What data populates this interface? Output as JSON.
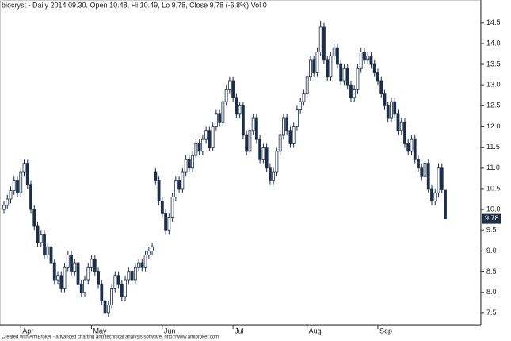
{
  "chart_data": {
    "type": "candlestick",
    "title": "biocryst - Daily 2014.09.30. Open 10.48, Hi 10.49, Lo 9.78, Close 9.78 (-6.8%) Vol 0",
    "footer": "Created with AmiBroker - advanced charting and technical analysis software. http://www.amibroker.com",
    "categories": [
      null,
      null,
      null,
      null,
      null,
      "Apr",
      null,
      null,
      null,
      null,
      null,
      null,
      null,
      null,
      null,
      null,
      null,
      null,
      null,
      null,
      null,
      null,
      null,
      null,
      null,
      null,
      "May",
      null,
      null,
      null,
      null,
      null,
      null,
      null,
      null,
      null,
      null,
      null,
      null,
      null,
      null,
      null,
      null,
      null,
      null,
      null,
      null,
      "Jun",
      null,
      null,
      null,
      null,
      null,
      null,
      null,
      null,
      null,
      null,
      null,
      null,
      null,
      null,
      null,
      null,
      null,
      null,
      null,
      null,
      "Jul",
      null,
      null,
      null,
      null,
      null,
      null,
      null,
      null,
      null,
      null,
      null,
      null,
      null,
      null,
      null,
      null,
      null,
      null,
      null,
      null,
      null,
      "Aug",
      null,
      null,
      null,
      null,
      null,
      null,
      null,
      null,
      null,
      null,
      null,
      null,
      null,
      null,
      null,
      null,
      null,
      null,
      null,
      null,
      "Sep",
      null,
      null,
      null,
      null,
      null,
      null,
      null,
      null,
      null,
      null,
      null,
      null,
      null,
      null,
      null,
      null,
      null,
      null,
      null,
      null
    ],
    "open": [
      10.0,
      10.1,
      10.25,
      10.45,
      10.7,
      10.4,
      10.9,
      11.1,
      10.6,
      10.0,
      9.6,
      9.2,
      9.4,
      8.9,
      9.1,
      8.7,
      8.3,
      8.4,
      8.1,
      8.6,
      8.9,
      8.5,
      8.7,
      8.2,
      8.0,
      8.3,
      8.6,
      8.8,
      8.5,
      8.2,
      7.8,
      7.5,
      7.7,
      8.1,
      8.4,
      8.2,
      7.9,
      8.3,
      8.5,
      8.3,
      8.6,
      8.7,
      8.6,
      8.9,
      9.0,
      10.9,
      10.7,
      10.2,
      9.9,
      9.5,
      9.8,
      10.3,
      10.7,
      10.5,
      10.9,
      11.2,
      11.0,
      11.3,
      11.6,
      11.4,
      11.7,
      11.9,
      11.5,
      12.0,
      12.3,
      12.1,
      12.6,
      12.9,
      13.1,
      12.7,
      12.3,
      12.5,
      11.8,
      11.4,
      11.9,
      12.2,
      11.7,
      11.2,
      11.5,
      11.0,
      10.7,
      10.9,
      11.4,
      11.8,
      12.2,
      11.9,
      11.6,
      12.0,
      12.4,
      12.6,
      12.8,
      13.2,
      13.6,
      13.3,
      13.8,
      14.4,
      13.6,
      13.2,
      13.7,
      13.9,
      13.5,
      13.1,
      13.4,
      13.0,
      12.7,
      12.9,
      13.4,
      13.8,
      13.6,
      13.7,
      13.5,
      13.3,
      13.1,
      12.8,
      12.5,
      12.2,
      12.6,
      12.3,
      11.9,
      12.1,
      11.6,
      11.4,
      11.7,
      11.2,
      11.0,
      10.8,
      11.1,
      10.5,
      10.2,
      10.4,
      11.0,
      10.48
    ],
    "high": [
      10.2,
      10.35,
      10.55,
      10.8,
      10.8,
      11.0,
      11.2,
      11.2,
      10.7,
      10.1,
      9.7,
      9.5,
      9.5,
      9.2,
      9.2,
      8.8,
      8.5,
      8.5,
      8.7,
      9.0,
      9.0,
      8.8,
      8.8,
      8.3,
      8.4,
      8.7,
      8.9,
      8.9,
      8.6,
      8.3,
      7.9,
      7.8,
      8.2,
      8.5,
      8.5,
      8.3,
      8.4,
      8.6,
      8.6,
      8.7,
      8.8,
      8.8,
      9.0,
      9.1,
      9.2,
      11.0,
      10.8,
      10.3,
      10.0,
      9.9,
      10.4,
      10.8,
      10.8,
      11.0,
      11.3,
      11.3,
      11.4,
      11.7,
      11.7,
      11.8,
      12.0,
      12.0,
      12.1,
      12.4,
      12.4,
      12.7,
      13.0,
      13.2,
      13.2,
      12.8,
      12.6,
      12.6,
      11.9,
      12.0,
      12.3,
      12.3,
      11.8,
      11.6,
      11.6,
      11.1,
      11.0,
      11.5,
      11.9,
      12.3,
      12.3,
      12.0,
      12.1,
      12.5,
      12.7,
      12.9,
      13.3,
      13.7,
      13.7,
      13.9,
      14.55,
      14.5,
      13.7,
      13.8,
      14.0,
      14.0,
      13.6,
      13.5,
      13.5,
      13.1,
      13.0,
      13.5,
      13.9,
      13.9,
      13.8,
      13.8,
      13.6,
      13.4,
      13.2,
      12.9,
      12.6,
      12.7,
      12.7,
      12.4,
      12.2,
      12.2,
      11.7,
      11.8,
      11.8,
      11.3,
      11.1,
      11.2,
      11.2,
      10.6,
      10.5,
      11.1,
      11.1,
      10.49
    ],
    "low": [
      9.9,
      10.0,
      10.15,
      10.35,
      10.3,
      10.3,
      10.8,
      10.5,
      9.9,
      9.5,
      9.1,
      9.1,
      8.8,
      8.8,
      8.6,
      8.2,
      8.2,
      8.0,
      8.0,
      8.5,
      8.4,
      8.4,
      8.1,
      7.9,
      7.9,
      8.2,
      8.5,
      8.4,
      8.1,
      7.7,
      7.4,
      7.4,
      7.6,
      8.0,
      8.1,
      7.8,
      7.8,
      8.2,
      8.2,
      8.2,
      8.5,
      8.5,
      8.5,
      8.8,
      8.9,
      10.6,
      10.1,
      9.8,
      9.4,
      9.4,
      9.7,
      10.2,
      10.4,
      10.4,
      10.8,
      10.9,
      10.9,
      11.2,
      11.3,
      11.3,
      11.6,
      11.4,
      11.4,
      11.9,
      12.0,
      12.0,
      12.5,
      12.8,
      12.6,
      12.2,
      12.2,
      11.7,
      11.3,
      11.3,
      11.8,
      11.6,
      11.1,
      11.1,
      10.9,
      10.6,
      10.6,
      10.8,
      11.3,
      11.7,
      11.8,
      11.5,
      11.5,
      11.9,
      12.3,
      12.5,
      12.7,
      13.1,
      13.2,
      13.2,
      13.7,
      13.5,
      13.1,
      13.1,
      13.6,
      13.4,
      13.0,
      13.0,
      12.9,
      12.6,
      12.6,
      12.8,
      13.3,
      13.5,
      13.5,
      13.4,
      13.2,
      13.0,
      12.7,
      12.4,
      12.1,
      12.1,
      12.2,
      11.8,
      11.8,
      11.5,
      11.3,
      11.3,
      11.1,
      10.9,
      10.7,
      10.7,
      10.4,
      10.1,
      10.1,
      10.3,
      10.39,
      9.78
    ],
    "close": [
      10.1,
      10.25,
      10.45,
      10.7,
      10.4,
      10.9,
      11.1,
      10.6,
      10.0,
      9.6,
      9.2,
      9.4,
      8.9,
      9.1,
      8.7,
      8.3,
      8.4,
      8.1,
      8.6,
      8.9,
      8.5,
      8.7,
      8.2,
      8.0,
      8.3,
      8.6,
      8.8,
      8.5,
      8.2,
      7.8,
      7.5,
      7.7,
      8.1,
      8.4,
      8.2,
      7.9,
      8.3,
      8.5,
      8.3,
      8.6,
      8.7,
      8.6,
      8.9,
      9.0,
      9.1,
      10.7,
      10.2,
      9.9,
      9.5,
      9.8,
      10.3,
      10.7,
      10.5,
      10.9,
      11.2,
      11.0,
      11.3,
      11.6,
      11.4,
      11.7,
      11.9,
      11.5,
      12.0,
      12.3,
      12.1,
      12.6,
      12.9,
      13.1,
      12.7,
      12.3,
      12.5,
      11.8,
      11.4,
      11.9,
      12.2,
      11.7,
      11.2,
      11.5,
      11.0,
      10.7,
      10.9,
      11.4,
      11.8,
      12.2,
      11.9,
      11.6,
      12.0,
      12.4,
      12.6,
      12.8,
      13.2,
      13.6,
      13.3,
      13.8,
      14.4,
      13.6,
      13.2,
      13.7,
      13.9,
      13.5,
      13.1,
      13.4,
      13.0,
      12.7,
      12.9,
      13.4,
      13.8,
      13.6,
      13.7,
      13.5,
      13.3,
      13.1,
      12.8,
      12.5,
      12.2,
      12.6,
      12.3,
      11.9,
      12.1,
      11.6,
      11.4,
      11.7,
      11.2,
      11.0,
      10.8,
      11.1,
      10.5,
      10.2,
      10.4,
      11.0,
      10.49,
      9.78
    ],
    "up_color": "#ffffff",
    "down_color": "#1c2e4a",
    "ylim": [
      7.21,
      15.05
    ],
    "yticks": [
      7.5,
      {
        "value": 8,
        "label": "8.0"
      },
      8.5,
      {
        "value": 9,
        "label": "9.0"
      },
      9.5,
      {
        "value": 10,
        "label": "10.0"
      },
      10.5,
      {
        "value": 11,
        "label": "11.0"
      },
      11.5,
      {
        "value": 12,
        "label": "12.0"
      },
      12.5,
      {
        "value": 13,
        "label": "13.0"
      },
      13.5,
      {
        "value": 14,
        "label": "14.0"
      },
      14.5
    ],
    "grid": false
  }
}
